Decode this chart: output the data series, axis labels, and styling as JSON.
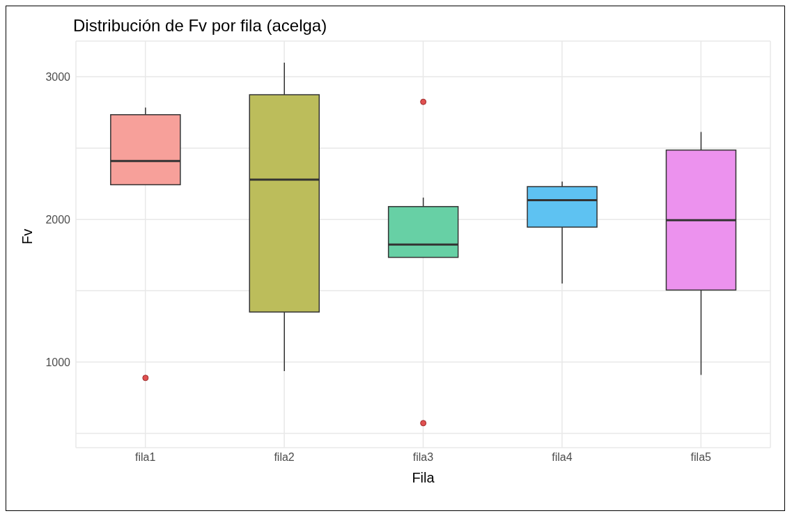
{
  "chart_data": {
    "type": "box",
    "title": "Distribución de Fv por fila (acelga)",
    "xlabel": "Fila",
    "ylabel": "Fv",
    "categories": [
      "fila1",
      "fila2",
      "fila3",
      "fila4",
      "fila5"
    ],
    "colors": [
      "#f7a09a",
      "#bcbd5b",
      "#67d0a5",
      "#5ec2f2",
      "#ec92ee"
    ],
    "boxes": [
      {
        "low": 2243,
        "q1": 2243,
        "median": 2410,
        "q3": 2734,
        "high": 2784,
        "outliers": [
          889
        ]
      },
      {
        "low": 937,
        "q1": 1351,
        "median": 2279,
        "q3": 2874,
        "high": 3099
      },
      {
        "low": 1734,
        "q1": 1734,
        "median": 1824,
        "q3": 2090,
        "high": 2153,
        "outliers": [
          2824,
          572
        ]
      },
      {
        "low": 1550,
        "q1": 1946,
        "median": 2135,
        "q3": 2230,
        "high": 2266
      },
      {
        "low": 910,
        "q1": 1505,
        "median": 1995,
        "q3": 2486,
        "high": 2613
      }
    ],
    "ylim": [
      400,
      3250
    ],
    "yticks": [
      {
        "value": 500,
        "label": null
      },
      1000,
      {
        "value": 1500,
        "label": null
      },
      2000,
      {
        "value": 2500,
        "label": null
      },
      3000
    ],
    "grid": true
  }
}
